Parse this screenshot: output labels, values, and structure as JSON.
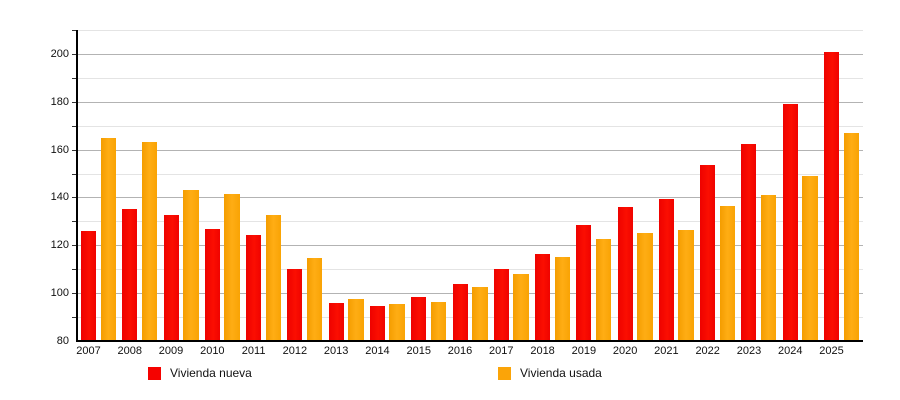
{
  "chart_data": {
    "type": "bar",
    "categories": [
      "2007",
      "2008",
      "2009",
      "2010",
      "2011",
      "2012",
      "2013",
      "2014",
      "2015",
      "2016",
      "2017",
      "2018",
      "2019",
      "2020",
      "2021",
      "2022",
      "2023",
      "2024",
      "2025"
    ],
    "series": [
      {
        "name": "Vivienda nueva",
        "color": "#f50200",
        "values": [
          126,
          135,
          132.5,
          127,
          124.5,
          110,
          96,
          94.5,
          98.5,
          104,
          110,
          116.5,
          128.5,
          136,
          139.5,
          153.5,
          162.5,
          179,
          201
        ]
      },
      {
        "name": "Vivienda usada",
        "color": "#fba408",
        "values": [
          165,
          163,
          143,
          141.5,
          132.5,
          114.5,
          97.5,
          95.5,
          96.5,
          102.5,
          108,
          115,
          122.5,
          125,
          126.5,
          136.5,
          141,
          149,
          167
        ]
      }
    ],
    "title": "",
    "xlabel": "",
    "ylabel": "",
    "ylim": [
      80,
      210
    ],
    "y_axis_labels": [
      "80",
      "100",
      "120",
      "140",
      "160",
      "180",
      "200"
    ],
    "y_major_step": 20,
    "y_minor_step": 10,
    "grid": "on",
    "legend_position": "bottom",
    "colors": {
      "grid_major": "#b3b3b3",
      "grid_minor": "#e4e4e4",
      "axis": "#000000",
      "text": "#111111"
    }
  }
}
